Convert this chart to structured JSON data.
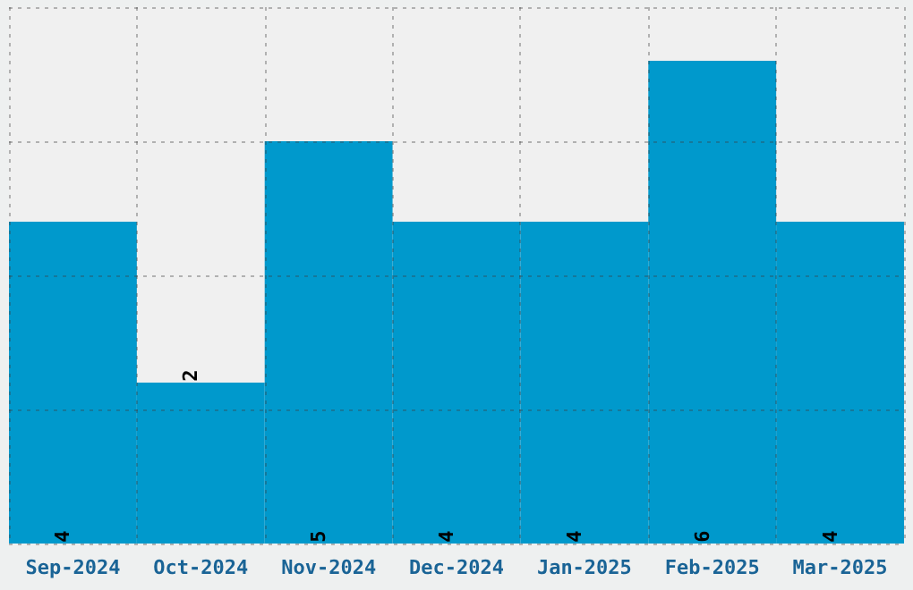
{
  "chart_data": {
    "type": "bar",
    "categories": [
      "Sep-2024",
      "Oct-2024",
      "Nov-2024",
      "Dec-2024",
      "Jan-2025",
      "Feb-2025",
      "Mar-2025"
    ],
    "values": [
      4,
      2,
      5,
      4,
      4,
      6,
      4
    ],
    "color": "#0099cc",
    "ylim": [
      0,
      6.667
    ],
    "yticks": [
      {
        "value": 0,
        "label": null
      },
      {
        "value": 1.667,
        "label": null
      },
      {
        "value": 3.333,
        "label": null
      },
      {
        "value": 5,
        "label": null
      },
      {
        "value": 6.667,
        "label": null
      }
    ],
    "tick_labels": "x",
    "grid": true,
    "data_labels": true
  }
}
